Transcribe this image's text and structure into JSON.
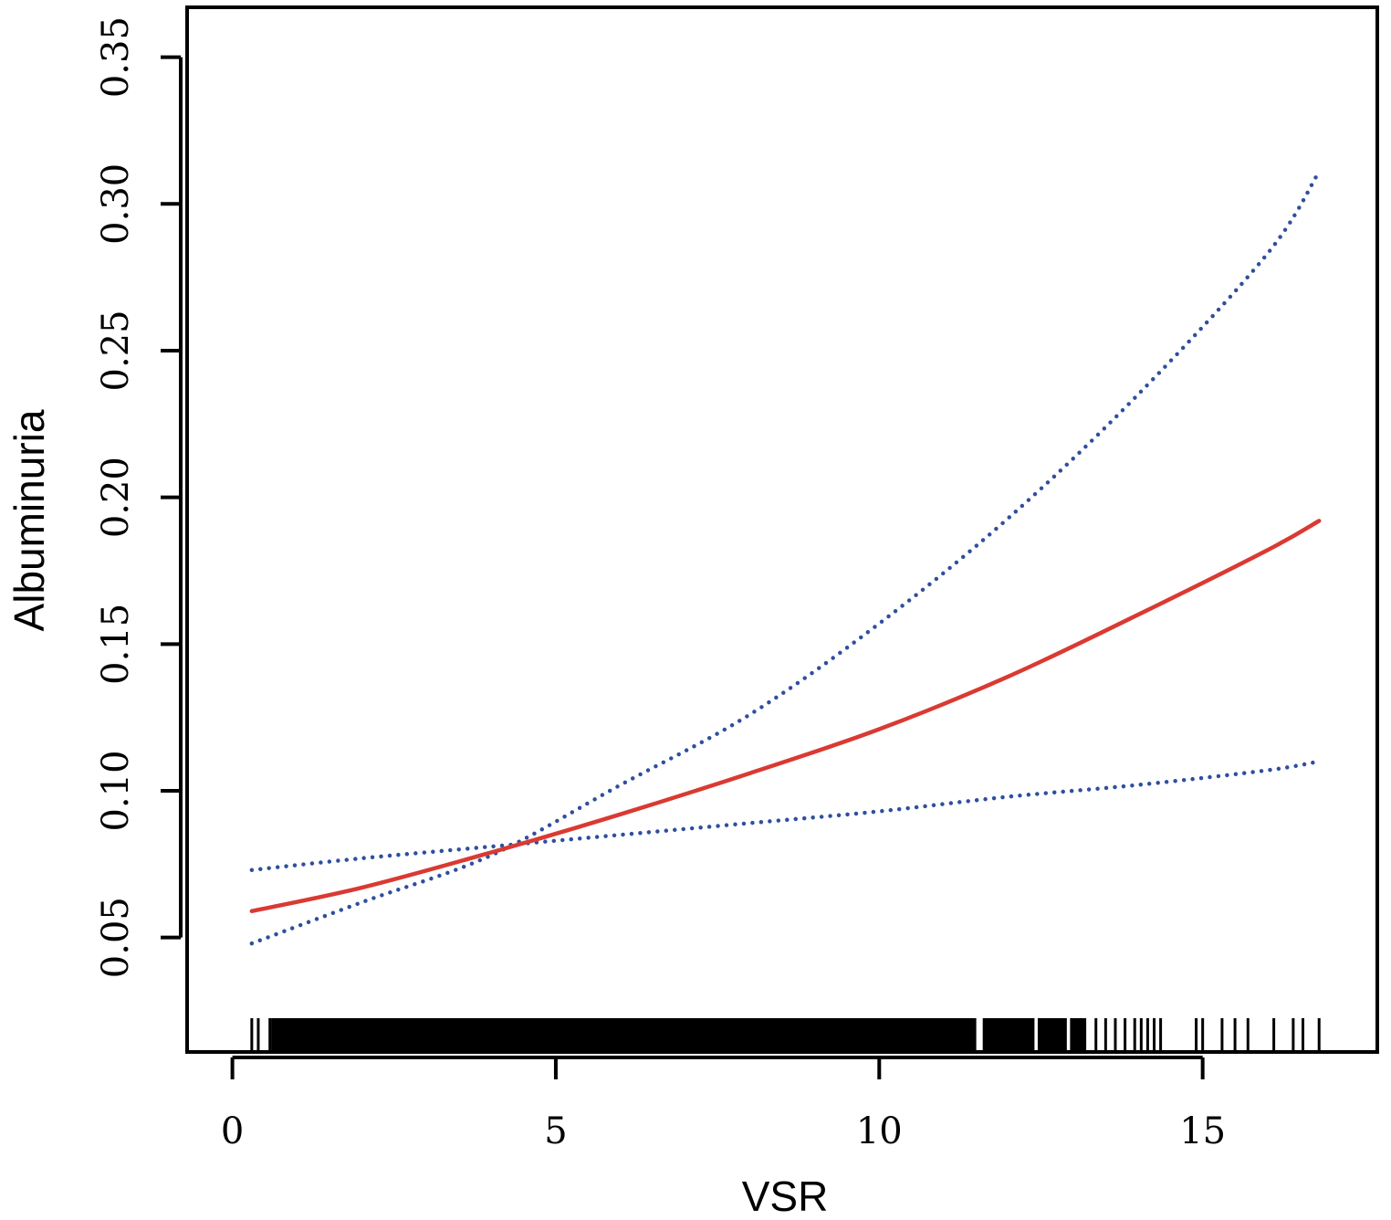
{
  "chart_data": {
    "type": "line",
    "title": "",
    "xlabel": "VSR",
    "ylabel": "Albuminuria",
    "xlim": [
      -0.7,
      17.7
    ],
    "ylim": [
      0.011,
      0.367
    ],
    "x_ticks": [
      0,
      5,
      10,
      15
    ],
    "x_tick_labels": [
      "0",
      "5",
      "10",
      "15"
    ],
    "y_ticks": [
      0.05,
      0.1,
      0.15,
      0.2,
      0.25,
      0.3,
      0.35
    ],
    "y_tick_labels": [
      "0.05",
      "0.10",
      "0.15",
      "0.20",
      "0.25",
      "0.30",
      "0.35"
    ],
    "grid": false,
    "legend": "none",
    "series": [
      {
        "role": "estimate",
        "style": "solid",
        "color": "#d93a32",
        "x": [
          0.3,
          2,
          4,
          6,
          8,
          10,
          12,
          14,
          16,
          16.8
        ],
        "y": [
          0.059,
          0.067,
          0.079,
          0.092,
          0.106,
          0.121,
          0.139,
          0.16,
          0.182,
          0.192
        ]
      },
      {
        "role": "upper_ci",
        "style": "dotted",
        "color": "#2f4f9e",
        "x": [
          0.3,
          2,
          4,
          6,
          8,
          10,
          12,
          14,
          16,
          16.8
        ],
        "y": [
          0.048,
          0.062,
          0.078,
          0.102,
          0.126,
          0.157,
          0.193,
          0.235,
          0.283,
          0.311
        ]
      },
      {
        "role": "lower_ci",
        "style": "dotted",
        "color": "#2f4f9e",
        "x": [
          0.3,
          2,
          4,
          6,
          8,
          10,
          12,
          14,
          16,
          16.8
        ],
        "y": [
          0.073,
          0.077,
          0.081,
          0.085,
          0.089,
          0.093,
          0.098,
          0.102,
          0.107,
          0.11
        ]
      }
    ],
    "rug": {
      "dense_ranges": [
        [
          0.6,
          11.5
        ],
        [
          11.6,
          12.4
        ],
        [
          12.45,
          12.9
        ],
        [
          12.95,
          13.2
        ]
      ],
      "ticks": [
        0.3,
        0.4,
        0.58,
        13.35,
        13.5,
        13.65,
        13.8,
        13.95,
        14.05,
        14.15,
        14.25,
        14.35,
        14.9,
        15.0,
        15.3,
        15.5,
        15.7,
        16.1,
        16.4,
        16.55,
        16.8
      ]
    }
  }
}
